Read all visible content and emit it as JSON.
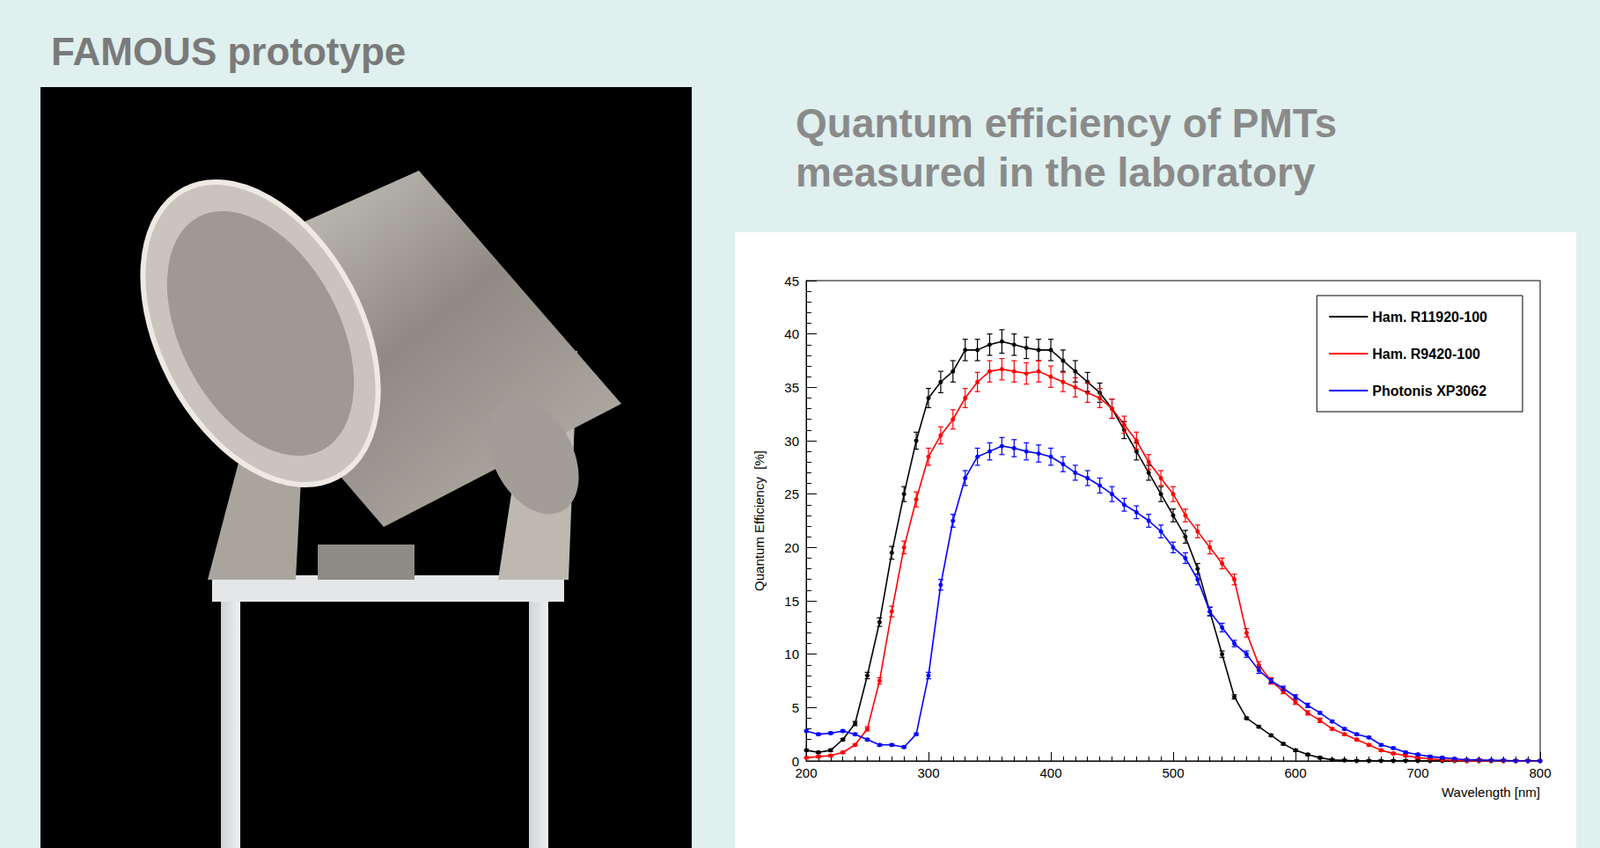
{
  "photo": {
    "title": "FAMOUS prototype"
  },
  "chart_data": {
    "type": "line",
    "title": "Quantum efficiency of PMTs measured in the laboratory",
    "x_label": "Wavelength [nm]",
    "y_label": "Quantum Efficiency  [%]",
    "x": [
      200,
      210,
      220,
      230,
      240,
      250,
      260,
      270,
      280,
      290,
      300,
      310,
      320,
      330,
      340,
      350,
      360,
      370,
      380,
      390,
      400,
      410,
      420,
      430,
      440,
      450,
      460,
      470,
      480,
      490,
      500,
      510,
      520,
      530,
      540,
      550,
      560,
      570,
      580,
      590,
      600,
      610,
      620,
      630,
      640,
      650,
      660,
      670,
      680,
      690,
      700,
      710,
      720,
      730,
      740,
      750,
      760,
      770,
      780,
      790,
      800
    ],
    "series": [
      {
        "name": "Ham. R11920-100",
        "color": "#000000",
        "values": [
          1,
          0.8,
          1,
          2,
          3.5,
          8,
          13,
          19.5,
          25,
          30,
          34,
          35.5,
          36.5,
          38.5,
          38.5,
          39,
          39.3,
          39,
          38.7,
          38.5,
          38.5,
          37.5,
          36.5,
          35.5,
          34.5,
          33,
          31,
          29,
          27,
          25,
          23,
          21,
          18,
          14,
          10,
          6,
          4,
          3.2,
          2.4,
          1.6,
          1,
          0.6,
          0.3,
          0.1,
          0.05,
          0,
          0,
          0,
          0,
          0,
          0,
          0,
          0,
          0,
          0,
          0,
          0,
          0,
          0,
          0,
          0
        ],
        "errors": [
          0.1,
          0.1,
          0.1,
          0.1,
          0.2,
          0.3,
          0.4,
          0.6,
          0.7,
          0.8,
          0.9,
          1,
          1,
          1,
          1,
          1,
          1.1,
          1,
          1,
          1,
          1,
          1,
          1,
          0.9,
          0.9,
          0.9,
          0.8,
          0.8,
          0.7,
          0.7,
          0.6,
          0.6,
          0.5,
          0.4,
          0.3,
          0.2,
          0.1,
          0.1,
          0.1,
          0.1,
          0.1,
          0.1,
          0.1,
          0.1,
          0.1,
          0.1,
          0.1,
          0.1,
          0.1,
          0.1,
          0.1,
          0.1,
          0.1,
          0.1,
          0.1,
          0.1,
          0.1,
          0.1,
          0.1,
          0.1,
          0.1
        ]
      },
      {
        "name": "Ham. R9420-100",
        "color": "#ff0000",
        "values": [
          0.3,
          0.4,
          0.5,
          0.8,
          1.5,
          3,
          7.5,
          14,
          20,
          24.5,
          28.5,
          30.5,
          32,
          34,
          35.5,
          36.5,
          36.7,
          36.5,
          36.3,
          36.5,
          36,
          35.5,
          35,
          34.5,
          34,
          33,
          31.5,
          30,
          28,
          26.5,
          25,
          23,
          21.5,
          20,
          18.5,
          17,
          12,
          9,
          7.5,
          6.5,
          5.5,
          4.5,
          3.8,
          3,
          2.5,
          2,
          1.5,
          1,
          0.7,
          0.5,
          0.3,
          0.2,
          0.1,
          0.05,
          0,
          0,
          0,
          0,
          0,
          0,
          0
        ],
        "errors": [
          0.1,
          0.1,
          0.1,
          0.1,
          0.1,
          0.2,
          0.3,
          0.5,
          0.6,
          0.7,
          0.8,
          0.8,
          0.9,
          0.9,
          0.9,
          1,
          1,
          1,
          1,
          1,
          1,
          0.9,
          0.9,
          0.9,
          0.9,
          0.9,
          0.8,
          0.8,
          0.7,
          0.7,
          0.7,
          0.6,
          0.6,
          0.6,
          0.5,
          0.5,
          0.4,
          0.3,
          0.3,
          0.2,
          0.2,
          0.2,
          0.2,
          0.1,
          0.1,
          0.1,
          0.1,
          0.1,
          0.1,
          0.1,
          0.1,
          0.1,
          0.1,
          0.1,
          0.1,
          0.1,
          0.1,
          0.1,
          0.1,
          0.1,
          0.1
        ]
      },
      {
        "name": "Photonis XP3062",
        "color": "#0000ff",
        "values": [
          2.8,
          2.5,
          2.6,
          2.8,
          2.5,
          2,
          1.5,
          1.5,
          1.3,
          2.5,
          8,
          16.5,
          22.5,
          26.5,
          28.5,
          29,
          29.5,
          29.3,
          29,
          28.8,
          28.5,
          27.8,
          27,
          26.5,
          25.8,
          25,
          24,
          23.3,
          22.5,
          21.5,
          20,
          19,
          17,
          14,
          12.5,
          11,
          10,
          8.5,
          7.5,
          6.8,
          6,
          5.2,
          4.5,
          3.7,
          3,
          2.5,
          2.2,
          1.5,
          1.2,
          0.8,
          0.6,
          0.4,
          0.3,
          0.2,
          0.1,
          0.1,
          0.05,
          0.05,
          0,
          0,
          0
        ],
        "errors": [
          0.1,
          0.1,
          0.1,
          0.1,
          0.1,
          0.1,
          0.1,
          0.1,
          0.1,
          0.1,
          0.3,
          0.5,
          0.6,
          0.7,
          0.8,
          0.8,
          0.8,
          0.8,
          0.8,
          0.8,
          0.8,
          0.7,
          0.7,
          0.7,
          0.7,
          0.7,
          0.6,
          0.6,
          0.6,
          0.6,
          0.5,
          0.5,
          0.5,
          0.4,
          0.4,
          0.3,
          0.3,
          0.3,
          0.2,
          0.2,
          0.2,
          0.2,
          0.1,
          0.1,
          0.1,
          0.1,
          0.1,
          0.1,
          0.1,
          0.1,
          0.1,
          0.1,
          0.1,
          0.1,
          0.1,
          0.1,
          0.1,
          0.1,
          0.1,
          0.1,
          0.1
        ]
      }
    ],
    "xlim": [
      200,
      800
    ],
    "xticks": [
      200,
      300,
      400,
      500,
      600,
      700,
      800
    ],
    "ylim": [
      0,
      45
    ],
    "yticks": [
      0,
      5,
      10,
      15,
      20,
      25,
      30,
      35,
      40,
      45
    ],
    "grid": false,
    "legend": "upper right",
    "marker": "circle"
  }
}
